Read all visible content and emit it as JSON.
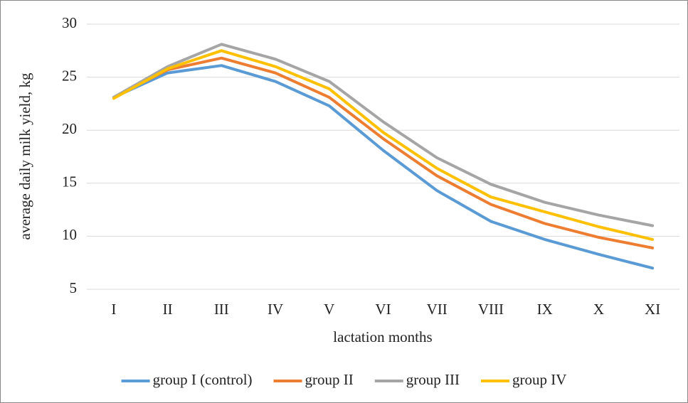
{
  "chart_data": {
    "type": "line",
    "y_label": "average daily milk yield, kg",
    "x_label": "lactation months",
    "categories": [
      "I",
      "II",
      "III",
      "IV",
      "V",
      "VI",
      "VII",
      "VIII",
      "IX",
      "X",
      "XI"
    ],
    "series": [
      {
        "name": "group I (control)",
        "color": "#5b9bd5",
        "values": [
          23.1,
          25.4,
          26.1,
          24.6,
          22.3,
          18.1,
          14.3,
          11.4,
          9.7,
          8.3,
          7.0
        ]
      },
      {
        "name": "group II",
        "color": "#ed7d31",
        "values": [
          23.1,
          25.7,
          26.8,
          25.4,
          23.1,
          19.2,
          15.7,
          13.0,
          11.2,
          9.9,
          8.9
        ]
      },
      {
        "name": "group III",
        "color": "#a5a5a5",
        "values": [
          23.1,
          26.0,
          28.1,
          26.7,
          24.6,
          20.8,
          17.4,
          14.9,
          13.2,
          12.0,
          11.0
        ]
      },
      {
        "name": "group IV",
        "color": "#ffc000",
        "values": [
          23.0,
          25.8,
          27.5,
          26.0,
          23.9,
          19.8,
          16.4,
          13.7,
          12.3,
          10.9,
          9.7
        ]
      }
    ],
    "ylim": [
      5,
      30
    ],
    "yticks": [
      5,
      10,
      15,
      20,
      25,
      30
    ],
    "grid": true,
    "legend": "bottom"
  }
}
